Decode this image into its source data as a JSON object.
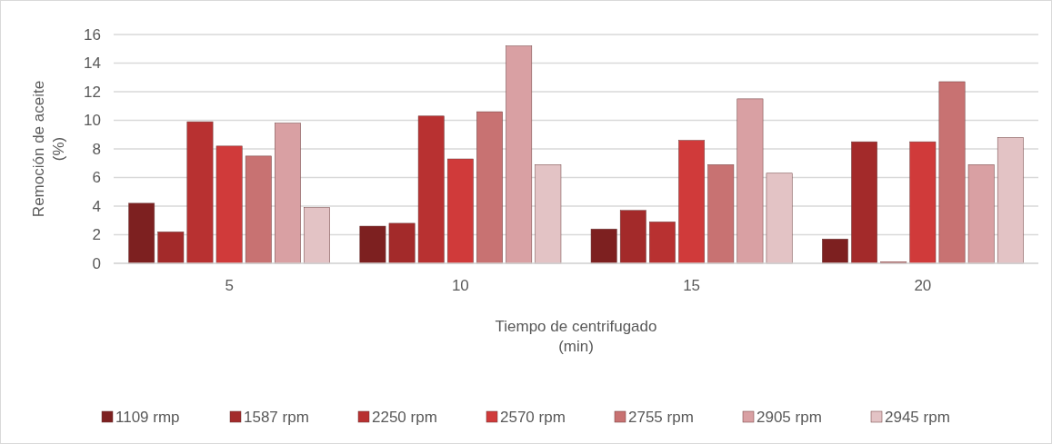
{
  "chart_data": {
    "type": "bar",
    "xlabel": "Tiempo de centrifugado\n(min)",
    "ylabel": "Remoción de aceite\n(%)",
    "categories": [
      "5",
      "10",
      "15",
      "20"
    ],
    "series": [
      {
        "name": "1109 rmp",
        "color": "#7d2020",
        "values": [
          4.2,
          2.6,
          2.4,
          1.7
        ]
      },
      {
        "name": "1587 rpm",
        "color": "#a32a2a",
        "values": [
          2.2,
          2.8,
          3.7,
          8.5
        ]
      },
      {
        "name": "2250 rpm",
        "color": "#b83131",
        "values": [
          9.9,
          10.3,
          2.9,
          0.1
        ]
      },
      {
        "name": "2570 rpm",
        "color": "#d03a3a",
        "values": [
          8.2,
          7.3,
          8.6,
          8.5
        ]
      },
      {
        "name": "2755 rpm",
        "color": "#c87272",
        "values": [
          7.5,
          10.6,
          6.9,
          12.7
        ]
      },
      {
        "name": "2905 rpm",
        "color": "#d9a0a3",
        "values": [
          9.8,
          15.2,
          11.5,
          6.9
        ]
      },
      {
        "name": "2945 rpm",
        "color": "#e3c3c5",
        "values": [
          3.9,
          6.9,
          6.3,
          8.8
        ]
      }
    ],
    "ylim": [
      0,
      16
    ],
    "yticks": [
      0,
      2,
      4,
      6,
      8,
      10,
      12,
      14,
      16
    ],
    "grid": "y",
    "legend": "bottom"
  }
}
